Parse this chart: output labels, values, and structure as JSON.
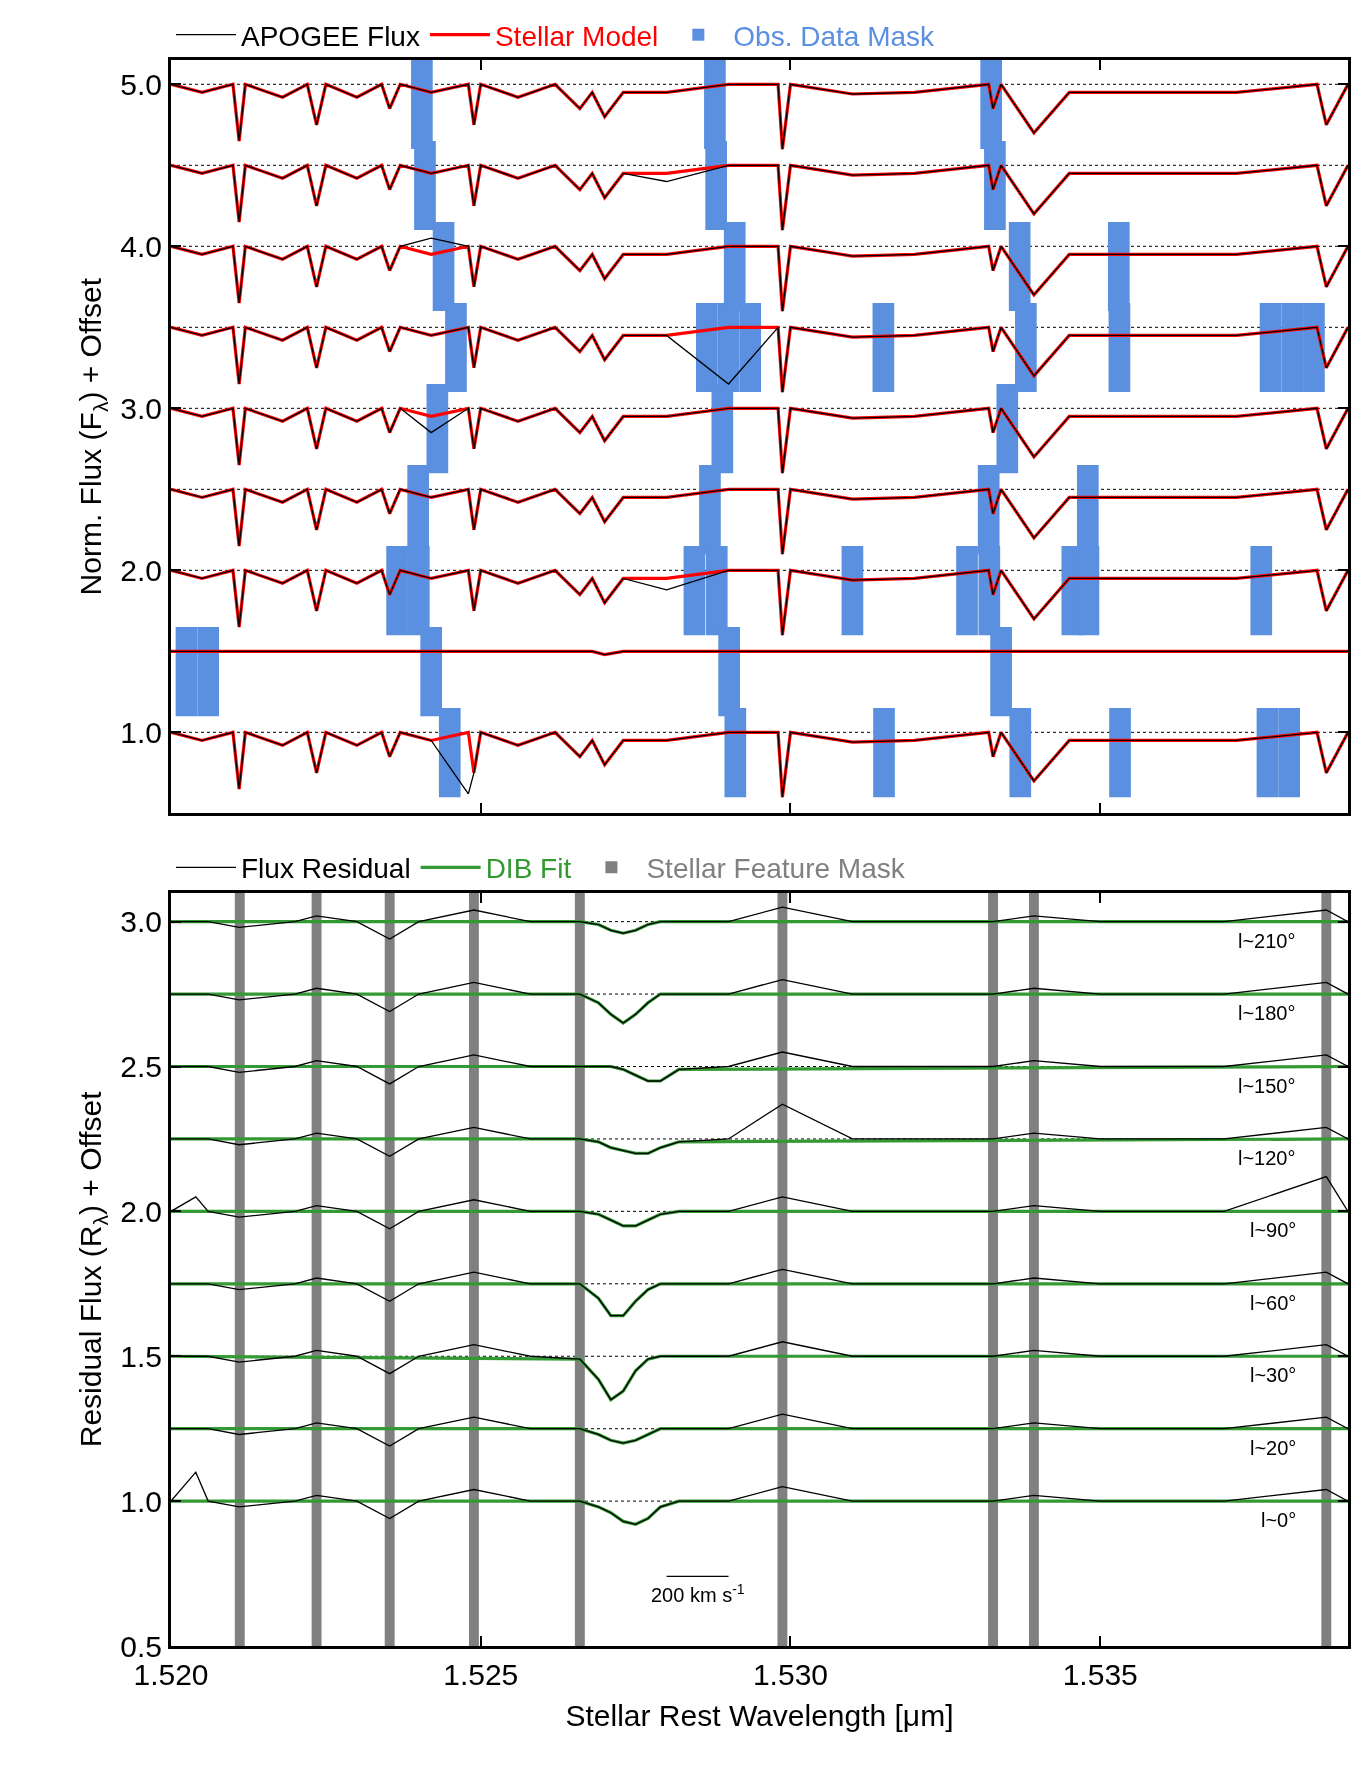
{
  "chart_data": [
    {
      "type": "line",
      "ylabel": "Norm. Flux (F$_{λ}$) + Offset",
      "xlim": [
        1.52,
        1.539
      ],
      "ylim": [
        0.5,
        5.15
      ],
      "xticks": [
        {
          "value": 1.52,
          "label": null
        },
        {
          "value": 1.525,
          "label": null
        },
        {
          "value": 1.53,
          "label": null
        },
        {
          "value": 1.535,
          "label": null
        }
      ],
      "yticks": [
        {
          "value": 1,
          "label": "1.0"
        },
        {
          "value": 2,
          "label": "2.0"
        },
        {
          "value": 3,
          "label": "3.0"
        },
        {
          "value": 4,
          "label": "4.0"
        },
        {
          "value": 5,
          "label": "5.0"
        }
      ],
      "tick_labels": "y",
      "grid": false,
      "legend": "top",
      "line_style": "solid",
      "marker": "none",
      "x": [
        1.52,
        1.5205,
        1.521,
        1.5211,
        1.5212,
        1.5218,
        1.5222,
        1.52235,
        1.5225,
        1.523,
        1.5234,
        1.52353,
        1.5237,
        1.5242,
        1.5248,
        1.52489,
        1.525,
        1.5256,
        1.5262,
        1.5266,
        1.5268,
        1.527,
        1.5273,
        1.528,
        1.529,
        1.5298,
        1.52987,
        1.53,
        1.531,
        1.532,
        1.5332,
        1.53327,
        1.5334,
        1.53393,
        1.5345,
        1.536,
        1.5372,
        1.5385,
        1.53865,
        1.539
      ],
      "ref_lines": [
        {
          "axis": "y",
          "value": 5,
          "color": "#000000",
          "line_style": "dotted"
        },
        {
          "axis": "y",
          "value": 4.5,
          "color": "#000000",
          "line_style": "dotted"
        },
        {
          "axis": "y",
          "value": 4,
          "color": "#000000",
          "line_style": "dotted"
        },
        {
          "axis": "y",
          "value": 3.5,
          "color": "#000000",
          "line_style": "dotted"
        },
        {
          "axis": "y",
          "value": 3,
          "color": "#000000",
          "line_style": "dotted"
        },
        {
          "axis": "y",
          "value": 2.5,
          "color": "#000000",
          "line_style": "dotted"
        },
        {
          "axis": "y",
          "value": 2,
          "color": "#000000",
          "line_style": "dotted"
        },
        {
          "axis": "y",
          "value": 1,
          "color": "#000000",
          "line_style": "dotted"
        }
      ],
      "series": [
        {
          "type": "bar",
          "name": "Obs. Data Mask",
          "color": "#5b8fe0",
          "x": [
            1.52025,
            1.5206,
            1.52365,
            1.52399,
            1.524,
            1.52405,
            1.5241,
            1.5242,
            1.5243,
            1.5244,
            1.5245,
            1.5246,
            1.52845,
            1.52865,
            1.5287,
            1.52878,
            1.5288,
            1.52881,
            1.5289,
            1.529,
            1.52901,
            1.5291,
            1.52911,
            1.52935,
            1.531,
            1.5315,
            1.53151,
            1.53285,
            1.5332,
            1.53321,
            1.53324,
            1.5333,
            1.5334,
            1.5335,
            1.5337,
            1.53371,
            1.5338,
            1.53455,
            1.5348,
            1.53481,
            1.5353,
            1.53531,
            1.53532,
            1.5376,
            1.5377,
            1.53775,
            1.53805,
            1.5381,
            1.53845
          ],
          "base": [
            1.1,
            1.1,
            1.6,
            2.1,
            1.6,
            4.6,
            4.1,
            1.1,
            2.6,
            3.6,
            0.6,
            3.1,
            1.6,
            3.1,
            2.1,
            4.6,
            4.1,
            1.6,
            2.6,
            3.1,
            1.1,
            3.6,
            0.6,
            3.1,
            1.6,
            3.1,
            0.6,
            1.6,
            2.1,
            1.6,
            4.6,
            4.1,
            1.1,
            2.6,
            3.6,
            0.6,
            3.1,
            1.6,
            2.1,
            1.6,
            3.6,
            3.1,
            0.6,
            1.6,
            0.6,
            3.1,
            0.6,
            3.1,
            3.1
          ],
          "values": [
            0.55,
            0.55,
            0.55,
            0.55,
            0.55,
            0.55,
            0.55,
            0.55,
            0.55,
            0.55,
            0.55,
            0.55,
            0.55,
            0.55,
            0.55,
            0.55,
            0.55,
            0.55,
            0.55,
            0.55,
            0.55,
            0.55,
            0.55,
            0.55,
            0.55,
            0.55,
            0.55,
            0.55,
            0.55,
            0.55,
            0.55,
            0.55,
            0.55,
            0.55,
            0.55,
            0.55,
            0.55,
            0.55,
            0.55,
            0.55,
            0.55,
            0.55,
            0.55,
            0.55,
            0.55,
            0.55,
            0.55,
            0.55,
            0.55
          ]
        },
        {
          "name": "APOGEE Flux",
          "color": "#000000",
          "values": [
            5,
            4.95,
            5,
            4.65,
            5,
            4.92,
            5,
            4.75,
            5,
            4.92,
            5,
            4.85,
            5,
            4.95,
            5,
            4.75,
            5,
            4.92,
            5,
            4.85,
            4.95,
            4.8,
            4.95,
            4.95,
            5,
            5,
            4.6,
            5,
            4.94,
            4.95,
            5,
            4.85,
            5,
            4.7,
            4.95,
            4.95,
            4.95,
            5,
            4.75,
            5
          ]
        },
        {
          "name": "Stellar Model",
          "color": "#ff0000",
          "values": [
            5,
            4.95,
            5,
            4.65,
            5,
            4.92,
            5,
            4.75,
            5,
            4.92,
            5,
            4.85,
            5,
            4.95,
            5,
            4.75,
            5,
            4.92,
            5,
            4.85,
            4.95,
            4.8,
            4.95,
            4.95,
            5,
            5,
            4.6,
            5,
            4.94,
            4.95,
            5,
            4.85,
            5,
            4.7,
            4.95,
            4.95,
            4.95,
            5,
            4.75,
            5
          ]
        },
        {
          "color": "#000000",
          "values": [
            4.5,
            4.45,
            4.5,
            4.15,
            4.5,
            4.42,
            4.5,
            4.25,
            4.5,
            4.42,
            4.5,
            4.35,
            4.5,
            4.45,
            4.5,
            4.25,
            4.5,
            4.42,
            4.5,
            4.35,
            4.45,
            4.3,
            4.45,
            4.4,
            4.5,
            4.5,
            4.1,
            4.5,
            4.44,
            4.45,
            4.5,
            4.35,
            4.5,
            4.2,
            4.45,
            4.45,
            4.45,
            4.5,
            4.25,
            4.5
          ]
        },
        {
          "color": "#ff0000",
          "values": [
            4.5,
            4.45,
            4.5,
            4.15,
            4.5,
            4.42,
            4.5,
            4.25,
            4.5,
            4.42,
            4.5,
            4.35,
            4.5,
            4.45,
            4.5,
            4.25,
            4.5,
            4.42,
            4.5,
            4.35,
            4.45,
            4.3,
            4.45,
            4.45,
            4.5,
            4.5,
            4.1,
            4.5,
            4.44,
            4.45,
            4.5,
            4.35,
            4.5,
            4.2,
            4.45,
            4.45,
            4.45,
            4.5,
            4.25,
            4.5
          ]
        },
        {
          "color": "#000000",
          "values": [
            4,
            3.95,
            4,
            3.65,
            4,
            3.92,
            4,
            3.75,
            4,
            3.92,
            4,
            3.85,
            4,
            4.05,
            4,
            3.75,
            4,
            3.92,
            4,
            3.85,
            3.95,
            3.8,
            3.95,
            3.95,
            4,
            4,
            3.6,
            4,
            3.94,
            3.95,
            4,
            3.85,
            4,
            3.7,
            3.95,
            3.95,
            3.95,
            4,
            3.75,
            4
          ]
        },
        {
          "color": "#ff0000",
          "values": [
            4,
            3.95,
            4,
            3.65,
            4,
            3.92,
            4,
            3.75,
            4,
            3.92,
            4,
            3.85,
            4,
            3.95,
            4,
            3.75,
            4,
            3.92,
            4,
            3.85,
            3.95,
            3.8,
            3.95,
            3.95,
            4,
            4,
            3.6,
            4,
            3.94,
            3.95,
            4,
            3.85,
            4,
            3.7,
            3.95,
            3.95,
            3.95,
            4,
            3.75,
            4
          ]
        },
        {
          "color": "#000000",
          "values": [
            3.5,
            3.45,
            3.5,
            3.15,
            3.5,
            3.42,
            3.5,
            3.25,
            3.5,
            3.42,
            3.5,
            3.35,
            3.5,
            3.45,
            3.5,
            3.25,
            3.5,
            3.42,
            3.5,
            3.35,
            3.45,
            3.3,
            3.45,
            3.45,
            3.15,
            3.5,
            3.1,
            3.5,
            3.44,
            3.45,
            3.5,
            3.35,
            3.5,
            3.2,
            3.45,
            3.45,
            3.45,
            3.5,
            3.25,
            3.5
          ]
        },
        {
          "color": "#ff0000",
          "values": [
            3.5,
            3.45,
            3.5,
            3.15,
            3.5,
            3.42,
            3.5,
            3.25,
            3.5,
            3.42,
            3.5,
            3.35,
            3.5,
            3.45,
            3.5,
            3.25,
            3.5,
            3.42,
            3.5,
            3.35,
            3.45,
            3.3,
            3.45,
            3.45,
            3.5,
            3.5,
            3.1,
            3.5,
            3.44,
            3.45,
            3.5,
            3.35,
            3.5,
            3.2,
            3.45,
            3.45,
            3.45,
            3.5,
            3.25,
            3.5
          ]
        },
        {
          "color": "#000000",
          "values": [
            3,
            2.95,
            3,
            2.65,
            3,
            2.92,
            3,
            2.75,
            3,
            2.92,
            3,
            2.85,
            3,
            2.85,
            3,
            2.75,
            3,
            2.92,
            3,
            2.85,
            2.95,
            2.8,
            2.95,
            2.95,
            3,
            3,
            2.6,
            3,
            2.94,
            2.95,
            3,
            2.85,
            3,
            2.7,
            2.95,
            2.95,
            2.95,
            3,
            2.75,
            3
          ]
        },
        {
          "color": "#ff0000",
          "values": [
            3,
            2.95,
            3,
            2.65,
            3,
            2.92,
            3,
            2.75,
            3,
            2.92,
            3,
            2.85,
            3,
            2.95,
            3,
            2.75,
            3,
            2.92,
            3,
            2.85,
            2.95,
            2.8,
            2.95,
            2.95,
            3,
            3,
            2.6,
            3,
            2.94,
            2.95,
            3,
            2.85,
            3,
            2.7,
            2.95,
            2.95,
            2.95,
            3,
            2.75,
            3
          ]
        },
        {
          "color": "#000000",
          "values": [
            2.5,
            2.45,
            2.5,
            2.15,
            2.5,
            2.42,
            2.5,
            2.25,
            2.5,
            2.42,
            2.5,
            2.35,
            2.5,
            2.45,
            2.5,
            2.25,
            2.5,
            2.42,
            2.5,
            2.35,
            2.45,
            2.3,
            2.45,
            2.45,
            2.5,
            2.5,
            2.1,
            2.5,
            2.44,
            2.45,
            2.5,
            2.35,
            2.5,
            2.2,
            2.45,
            2.45,
            2.45,
            2.5,
            2.25,
            2.5
          ]
        },
        {
          "color": "#ff0000",
          "values": [
            2.5,
            2.45,
            2.5,
            2.15,
            2.5,
            2.42,
            2.5,
            2.25,
            2.5,
            2.42,
            2.5,
            2.35,
            2.5,
            2.45,
            2.5,
            2.25,
            2.5,
            2.42,
            2.5,
            2.35,
            2.45,
            2.3,
            2.45,
            2.45,
            2.5,
            2.5,
            2.1,
            2.5,
            2.44,
            2.45,
            2.5,
            2.35,
            2.5,
            2.2,
            2.45,
            2.45,
            2.45,
            2.5,
            2.25,
            2.5
          ]
        },
        {
          "color": "#000000",
          "values": [
            2,
            1.95,
            2,
            1.65,
            2,
            1.92,
            2,
            1.75,
            2,
            1.92,
            2,
            1.85,
            2,
            1.95,
            2,
            1.75,
            2,
            1.92,
            2,
            1.85,
            1.95,
            1.8,
            1.95,
            1.88,
            2,
            2,
            1.6,
            2,
            1.94,
            1.95,
            2,
            1.85,
            2,
            1.7,
            1.95,
            1.95,
            1.95,
            2,
            1.75,
            2
          ]
        },
        {
          "color": "#ff0000",
          "values": [
            2,
            1.95,
            2,
            1.65,
            2,
            1.92,
            2,
            1.75,
            2,
            1.92,
            2,
            1.85,
            2,
            1.95,
            2,
            1.75,
            2,
            1.92,
            2,
            1.85,
            1.95,
            1.8,
            1.95,
            1.95,
            2,
            2,
            1.6,
            2,
            1.94,
            1.95,
            2,
            1.85,
            2,
            1.7,
            1.95,
            1.95,
            1.95,
            2,
            1.75,
            2
          ]
        },
        {
          "color": "#000000",
          "values": [
            1.5,
            1.5,
            1.5,
            1.5,
            1.5,
            1.5,
            1.5,
            1.5,
            1.5,
            1.5,
            1.5,
            1.5,
            1.5,
            1.5,
            1.5,
            1.5,
            1.5,
            1.5,
            1.5,
            1.5,
            1.5,
            1.48,
            1.5,
            1.5,
            1.5,
            1.5,
            1.5,
            1.5,
            1.5,
            1.5,
            1.5,
            1.5,
            1.5,
            1.5,
            1.5,
            1.5,
            1.5,
            1.5,
            1.5,
            1.5
          ]
        },
        {
          "color": "#ff0000",
          "values": [
            1.5,
            1.5,
            1.5,
            1.5,
            1.5,
            1.5,
            1.5,
            1.5,
            1.5,
            1.5,
            1.5,
            1.5,
            1.5,
            1.5,
            1.5,
            1.5,
            1.5,
            1.5,
            1.5,
            1.5,
            1.5,
            1.48,
            1.5,
            1.5,
            1.5,
            1.5,
            1.5,
            1.5,
            1.5,
            1.5,
            1.5,
            1.5,
            1.5,
            1.5,
            1.5,
            1.5,
            1.5,
            1.5,
            1.5,
            1.5
          ]
        },
        {
          "color": "#000000",
          "values": [
            1,
            0.95,
            1,
            0.65,
            1,
            0.92,
            1,
            0.75,
            1,
            0.92,
            1,
            0.85,
            1,
            0.95,
            0.62,
            0.75,
            1,
            0.92,
            1,
            0.85,
            0.95,
            0.8,
            0.95,
            0.95,
            1,
            1,
            0.6,
            1,
            0.94,
            0.95,
            1,
            0.85,
            1,
            0.7,
            0.95,
            0.95,
            0.95,
            1,
            0.75,
            1
          ]
        },
        {
          "color": "#ff0000",
          "values": [
            1,
            0.95,
            1,
            0.65,
            1,
            0.92,
            1,
            0.75,
            1,
            0.92,
            1,
            0.85,
            1,
            0.95,
            1,
            0.75,
            1,
            0.92,
            1,
            0.85,
            0.95,
            0.8,
            0.95,
            0.95,
            1,
            1,
            0.6,
            1,
            0.94,
            0.95,
            1,
            0.85,
            1,
            0.7,
            0.95,
            0.95,
            0.95,
            1,
            0.75,
            1
          ]
        }
      ]
    },
    {
      "type": "line",
      "xlabel": "Stellar Rest Wavelength [μm]",
      "ylabel": "Residual Flux (R$_{λ}$) + Offset",
      "xlim": [
        1.52,
        1.539
      ],
      "ylim": [
        0.5,
        3.1
      ],
      "xticks": [
        {
          "value": 1.52,
          "label": "1.520"
        },
        {
          "value": 1.525,
          "label": "1.525"
        },
        {
          "value": 1.53,
          "label": "1.530"
        },
        {
          "value": 1.535,
          "label": "1.535"
        }
      ],
      "yticks": [
        {
          "value": 0.5,
          "label": "0.5"
        },
        {
          "value": 1,
          "label": "1.0"
        },
        {
          "value": 1.5,
          "label": "1.5"
        },
        {
          "value": 2,
          "label": "2.0"
        },
        {
          "value": 2.5,
          "label": "2.5"
        },
        {
          "value": 3,
          "label": "3.0"
        }
      ],
      "grid": false,
      "legend": "top",
      "line_style": "solid",
      "marker": "none",
      "ref_lines": [
        {
          "axis": "y",
          "value": 3,
          "color": "#000000",
          "line_style": "dotted"
        },
        {
          "axis": "y",
          "value": 2.75,
          "color": "#000000",
          "line_style": "dotted"
        },
        {
          "axis": "y",
          "value": 2.5,
          "color": "#000000",
          "line_style": "dotted"
        },
        {
          "axis": "y",
          "value": 2.25,
          "color": "#000000",
          "line_style": "dotted"
        },
        {
          "axis": "y",
          "value": 2,
          "color": "#000000",
          "line_style": "dotted"
        },
        {
          "axis": "y",
          "value": 1.75,
          "color": "#000000",
          "line_style": "dotted"
        },
        {
          "axis": "y",
          "value": 1.5,
          "color": "#000000",
          "line_style": "dotted"
        },
        {
          "axis": "y",
          "value": 1.25,
          "color": "#000000",
          "line_style": "dotted"
        },
        {
          "axis": "y",
          "value": 1,
          "color": "#000000",
          "line_style": "dotted"
        }
      ],
      "annotations": [
        "l~210°",
        "l~180°",
        "l~150°",
        "l~120°",
        "l~90°",
        "l~60°",
        "l~30°",
        "l~20°",
        "l~0°",
        {
          "text": "200 km s$^{-1}$",
          "x": 1.5285,
          "y": 0.74
        }
      ],
      "series": [
        {
          "type": "bar",
          "name": "Stellar Feature Mask",
          "color": "#808080",
          "x": [
            1.52111,
            1.52235,
            1.52353,
            1.52489,
            1.5266,
            1.52987,
            1.53327,
            1.53393,
            1.53865
          ],
          "base": [
            0.5,
            0.5,
            0.5,
            0.5,
            0.5,
            0.5,
            0.5,
            0.5,
            0.5
          ],
          "values": [
            2.6,
            2.6,
            2.6,
            2.6,
            2.6,
            2.6,
            2.6,
            2.6,
            2.6
          ]
        },
        {
          "type": "line",
          "color": "#000000",
          "x": [
            1.528,
            1.529
          ],
          "values": [
            0.74,
            0.74
          ]
        },
        {
          "name": "Flux Residual",
          "color": "#000000",
          "x": [
            1.52,
            1.5204,
            1.5206,
            1.5211,
            1.522,
            1.52235,
            1.523,
            1.52353,
            1.524,
            1.52489,
            1.5258,
            1.5266,
            1.5269,
            1.5271,
            1.5273,
            1.5275,
            1.5277,
            1.5279,
            1.5282,
            1.529,
            1.52987,
            1.531,
            1.532,
            1.53327,
            1.53393,
            1.535,
            1.537,
            1.53865,
            1.539
          ],
          "values": [
            3,
            3,
            3,
            2.98,
            3,
            3.02,
            3,
            2.94,
            3,
            3.04,
            3,
            3,
            2.99,
            2.97,
            2.96,
            2.97,
            2.99,
            3,
            3,
            3,
            3.05,
            3,
            3,
            3,
            3.02,
            3,
            3,
            3.04,
            3
          ]
        },
        {
          "name": "DIB Fit",
          "color": "#339933",
          "x": [
            1.52,
            1.5266,
            1.5269,
            1.5271,
            1.5273,
            1.5275,
            1.5277,
            1.5279,
            1.5282,
            1.539
          ],
          "values": [
            3,
            3,
            2.99,
            2.97,
            2.96,
            2.97,
            2.99,
            3,
            3,
            3
          ]
        },
        {
          "color": "#000000",
          "x": [
            1.52,
            1.5204,
            1.5206,
            1.5211,
            1.522,
            1.52235,
            1.523,
            1.52353,
            1.524,
            1.52489,
            1.5258,
            1.5266,
            1.5269,
            1.5271,
            1.5273,
            1.5275,
            1.5277,
            1.5279,
            1.5282,
            1.529,
            1.52987,
            1.531,
            1.532,
            1.53327,
            1.53393,
            1.535,
            1.537,
            1.53865,
            1.539
          ],
          "values": [
            2.75,
            2.75,
            2.75,
            2.73,
            2.75,
            2.77,
            2.75,
            2.69,
            2.75,
            2.79,
            2.75,
            2.75,
            2.72,
            2.68,
            2.65,
            2.68,
            2.72,
            2.75,
            2.75,
            2.75,
            2.8,
            2.75,
            2.75,
            2.75,
            2.77,
            2.75,
            2.75,
            2.79,
            2.75
          ]
        },
        {
          "color": "#339933",
          "x": [
            1.52,
            1.5266,
            1.5269,
            1.5271,
            1.5273,
            1.5275,
            1.5277,
            1.5279,
            1.5282,
            1.539
          ],
          "values": [
            2.75,
            2.75,
            2.72,
            2.68,
            2.65,
            2.68,
            2.72,
            2.75,
            2.75,
            2.75
          ]
        },
        {
          "color": "#000000",
          "x": [
            1.52,
            1.5204,
            1.5206,
            1.5211,
            1.522,
            1.52235,
            1.523,
            1.52353,
            1.524,
            1.52489,
            1.5258,
            1.5266,
            1.5269,
            1.5271,
            1.5273,
            1.5275,
            1.5277,
            1.5279,
            1.5282,
            1.529,
            1.52987,
            1.531,
            1.532,
            1.53327,
            1.53393,
            1.535,
            1.537,
            1.53865,
            1.539
          ],
          "values": [
            2.5,
            2.5,
            2.5,
            2.48,
            2.5,
            2.52,
            2.5,
            2.44,
            2.5,
            2.54,
            2.5,
            2.5,
            2.5,
            2.5,
            2.49,
            2.47,
            2.45,
            2.45,
            2.49,
            2.5,
            2.55,
            2.5,
            2.5,
            2.5,
            2.52,
            2.5,
            2.5,
            2.54,
            2.5
          ]
        },
        {
          "color": "#339933",
          "x": [
            1.52,
            1.5266,
            1.5269,
            1.5271,
            1.5273,
            1.5275,
            1.5277,
            1.5279,
            1.5282,
            1.539
          ],
          "values": [
            2.5,
            2.5,
            2.5,
            2.5,
            2.49,
            2.47,
            2.45,
            2.45,
            2.49,
            2.5
          ]
        },
        {
          "color": "#000000",
          "x": [
            1.52,
            1.5204,
            1.5206,
            1.5211,
            1.522,
            1.52235,
            1.523,
            1.52353,
            1.524,
            1.52489,
            1.5258,
            1.5266,
            1.5269,
            1.5271,
            1.5273,
            1.5275,
            1.5277,
            1.5279,
            1.5282,
            1.529,
            1.52987,
            1.531,
            1.532,
            1.53327,
            1.53393,
            1.535,
            1.537,
            1.53865,
            1.539
          ],
          "values": [
            2.25,
            2.25,
            2.25,
            2.23,
            2.25,
            2.27,
            2.25,
            2.19,
            2.25,
            2.29,
            2.25,
            2.25,
            2.24,
            2.22,
            2.21,
            2.2,
            2.2,
            2.22,
            2.24,
            2.25,
            2.37,
            2.25,
            2.25,
            2.25,
            2.27,
            2.25,
            2.25,
            2.29,
            2.25
          ]
        },
        {
          "color": "#339933",
          "x": [
            1.52,
            1.5266,
            1.5269,
            1.5271,
            1.5273,
            1.5275,
            1.5277,
            1.5279,
            1.5282,
            1.539
          ],
          "values": [
            2.25,
            2.25,
            2.24,
            2.22,
            2.21,
            2.2,
            2.2,
            2.22,
            2.24,
            2.25
          ]
        },
        {
          "color": "#000000",
          "x": [
            1.52,
            1.5204,
            1.5206,
            1.5211,
            1.522,
            1.52235,
            1.523,
            1.52353,
            1.524,
            1.52489,
            1.5258,
            1.5266,
            1.5269,
            1.5271,
            1.5273,
            1.5275,
            1.5277,
            1.5279,
            1.5282,
            1.529,
            1.52987,
            1.531,
            1.532,
            1.53327,
            1.53393,
            1.535,
            1.537,
            1.53865,
            1.539
          ],
          "values": [
            2,
            2.05,
            2,
            1.98,
            2,
            2.02,
            2,
            1.94,
            2,
            2.04,
            2,
            2,
            1.99,
            1.97,
            1.95,
            1.95,
            1.97,
            1.99,
            2,
            2,
            2.05,
            2,
            2,
            2,
            2.02,
            2,
            2,
            2.12,
            2
          ]
        },
        {
          "color": "#339933",
          "x": [
            1.52,
            1.5266,
            1.5269,
            1.5271,
            1.5273,
            1.5275,
            1.5277,
            1.5279,
            1.5282,
            1.539
          ],
          "values": [
            2,
            2,
            1.99,
            1.97,
            1.95,
            1.95,
            1.97,
            1.99,
            2,
            2
          ]
        },
        {
          "color": "#000000",
          "x": [
            1.52,
            1.5204,
            1.5206,
            1.5211,
            1.522,
            1.52235,
            1.523,
            1.52353,
            1.524,
            1.52489,
            1.5258,
            1.5266,
            1.5269,
            1.5271,
            1.5273,
            1.5275,
            1.5277,
            1.5279,
            1.5282,
            1.529,
            1.52987,
            1.531,
            1.532,
            1.53327,
            1.53393,
            1.535,
            1.537,
            1.53865,
            1.539
          ],
          "values": [
            1.75,
            1.75,
            1.75,
            1.73,
            1.75,
            1.77,
            1.75,
            1.69,
            1.75,
            1.79,
            1.75,
            1.75,
            1.7,
            1.64,
            1.64,
            1.69,
            1.73,
            1.75,
            1.75,
            1.75,
            1.8,
            1.75,
            1.75,
            1.75,
            1.77,
            1.75,
            1.75,
            1.79,
            1.75
          ]
        },
        {
          "color": "#339933",
          "x": [
            1.52,
            1.5266,
            1.5269,
            1.5271,
            1.5273,
            1.5275,
            1.5277,
            1.5279,
            1.5282,
            1.539
          ],
          "values": [
            1.75,
            1.75,
            1.7,
            1.64,
            1.64,
            1.69,
            1.73,
            1.75,
            1.75,
            1.75
          ]
        },
        {
          "color": "#000000",
          "x": [
            1.52,
            1.5204,
            1.5206,
            1.5211,
            1.522,
            1.52235,
            1.523,
            1.52353,
            1.524,
            1.52489,
            1.5258,
            1.5266,
            1.5269,
            1.5271,
            1.5273,
            1.5275,
            1.5277,
            1.5279,
            1.5282,
            1.529,
            1.52987,
            1.531,
            1.532,
            1.53327,
            1.53393,
            1.535,
            1.537,
            1.53865,
            1.539
          ],
          "values": [
            1.5,
            1.5,
            1.5,
            1.48,
            1.5,
            1.52,
            1.5,
            1.44,
            1.5,
            1.54,
            1.5,
            1.49,
            1.42,
            1.35,
            1.38,
            1.45,
            1.49,
            1.5,
            1.5,
            1.5,
            1.55,
            1.5,
            1.5,
            1.5,
            1.52,
            1.5,
            1.5,
            1.54,
            1.5
          ]
        },
        {
          "color": "#339933",
          "x": [
            1.52,
            1.5266,
            1.5269,
            1.5271,
            1.5273,
            1.5275,
            1.5277,
            1.5279,
            1.5282,
            1.539
          ],
          "values": [
            1.5,
            1.49,
            1.42,
            1.35,
            1.38,
            1.45,
            1.49,
            1.5,
            1.5,
            1.5
          ]
        },
        {
          "color": "#000000",
          "x": [
            1.52,
            1.5204,
            1.5206,
            1.5211,
            1.522,
            1.52235,
            1.523,
            1.52353,
            1.524,
            1.52489,
            1.5258,
            1.5266,
            1.5269,
            1.5271,
            1.5273,
            1.5275,
            1.5277,
            1.5279,
            1.5282,
            1.529,
            1.52987,
            1.531,
            1.532,
            1.53327,
            1.53393,
            1.535,
            1.537,
            1.53865,
            1.539
          ],
          "values": [
            1.25,
            1.25,
            1.25,
            1.23,
            1.25,
            1.27,
            1.25,
            1.19,
            1.25,
            1.29,
            1.25,
            1.25,
            1.23,
            1.21,
            1.2,
            1.21,
            1.23,
            1.25,
            1.25,
            1.25,
            1.3,
            1.25,
            1.25,
            1.25,
            1.27,
            1.25,
            1.25,
            1.29,
            1.25
          ]
        },
        {
          "color": "#339933",
          "x": [
            1.52,
            1.5266,
            1.5269,
            1.5271,
            1.5273,
            1.5275,
            1.5277,
            1.5279,
            1.5282,
            1.539
          ],
          "values": [
            1.25,
            1.25,
            1.23,
            1.21,
            1.2,
            1.21,
            1.23,
            1.25,
            1.25,
            1.25
          ]
        },
        {
          "color": "#000000",
          "x": [
            1.52,
            1.5204,
            1.5206,
            1.5211,
            1.522,
            1.52235,
            1.523,
            1.52353,
            1.524,
            1.52489,
            1.5258,
            1.5266,
            1.5269,
            1.5271,
            1.5273,
            1.5275,
            1.5277,
            1.5279,
            1.5282,
            1.529,
            1.52987,
            1.531,
            1.532,
            1.53327,
            1.53393,
            1.535,
            1.537,
            1.53865,
            1.539
          ],
          "values": [
            1,
            1.1,
            1,
            0.98,
            1,
            1.02,
            1,
            0.94,
            1,
            1.04,
            1,
            1,
            0.98,
            0.96,
            0.93,
            0.92,
            0.94,
            0.98,
            1,
            1,
            1.05,
            1,
            1,
            1,
            1.02,
            1,
            1,
            1.04,
            1
          ]
        },
        {
          "color": "#339933",
          "x": [
            1.52,
            1.5266,
            1.5269,
            1.5271,
            1.5273,
            1.5275,
            1.5277,
            1.5279,
            1.5282,
            1.539
          ],
          "values": [
            1,
            1,
            0.98,
            0.96,
            0.93,
            0.92,
            0.94,
            0.98,
            1,
            1
          ]
        }
      ]
    }
  ]
}
